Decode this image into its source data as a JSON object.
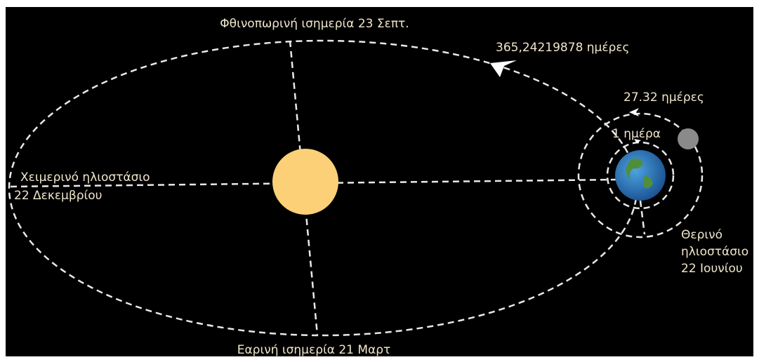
{
  "labels": {
    "autumn_equinox": "Φθινοπωρινή ισημερία 23 Σεπτ.",
    "year_length": "365,24219878 ημέρες",
    "month_length": "27.32 ημέρες",
    "day_length": "1 ημέρα",
    "winter_solstice": [
      "Χειμερινό ηλιοστάσιο",
      "22 Δεκεμβρίου"
    ],
    "summer_solstice": [
      "Θερινό",
      "ηλιοστάσιο",
      "22 Ιουνίου"
    ],
    "spring_equinox": "Εαρινή ισημερία 21 Μαρτ"
  }
}
